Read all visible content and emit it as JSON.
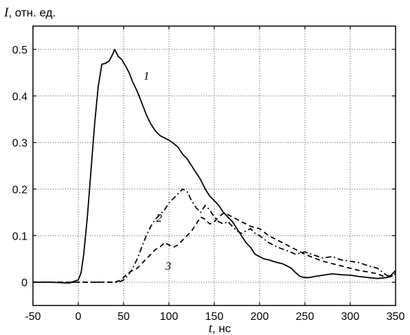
{
  "chart_data": {
    "type": "line",
    "title": "",
    "ylabel_var": "I",
    "ylabel_unit": ", отн. ед.",
    "xlabel_var": "t",
    "xlabel_unit": ", нс",
    "xlim": [
      -50,
      350
    ],
    "ylim": [
      -0.05,
      0.55
    ],
    "xticks": [
      -50,
      0,
      50,
      100,
      150,
      200,
      250,
      300,
      350
    ],
    "xtick_labels": [
      "-50",
      "0",
      "50",
      "100",
      "150",
      "200",
      "250",
      "300",
      "350"
    ],
    "yticks": [
      0,
      0.1,
      0.2,
      0.3,
      0.4,
      0.5
    ],
    "ytick_labels": [
      "0",
      "0.1",
      "0.2",
      "0.3",
      "0.4",
      "0.5"
    ],
    "grid": true,
    "series": [
      {
        "label": "1",
        "style": "solid",
        "label_at": [
          72,
          0.435
        ],
        "x": [
          -50,
          -30,
          -10,
          0,
          3,
          6,
          10,
          14,
          18,
          22,
          26,
          30,
          34,
          38,
          40,
          44,
          48,
          52,
          56,
          60,
          65,
          70,
          75,
          80,
          85,
          90,
          95,
          100,
          105,
          110,
          115,
          120,
          125,
          130,
          135,
          140,
          145,
          150,
          155,
          160,
          165,
          170,
          175,
          180,
          185,
          190,
          195,
          200,
          205,
          210,
          215,
          220,
          225,
          230,
          235,
          240,
          245,
          250,
          255,
          260,
          270,
          280,
          290,
          300,
          310,
          320,
          330,
          340,
          345,
          350
        ],
        "y": [
          0,
          0,
          -0.002,
          0.005,
          0.02,
          0.06,
          0.14,
          0.24,
          0.34,
          0.42,
          0.468,
          0.47,
          0.475,
          0.49,
          0.5,
          0.485,
          0.478,
          0.465,
          0.45,
          0.43,
          0.41,
          0.385,
          0.36,
          0.34,
          0.325,
          0.315,
          0.31,
          0.305,
          0.298,
          0.29,
          0.275,
          0.265,
          0.25,
          0.235,
          0.22,
          0.2,
          0.185,
          0.175,
          0.165,
          0.15,
          0.14,
          0.13,
          0.115,
          0.1,
          0.085,
          0.075,
          0.06,
          0.055,
          0.05,
          0.048,
          0.045,
          0.042,
          0.04,
          0.035,
          0.03,
          0.02,
          0.012,
          0.01,
          0.01,
          0.012,
          0.015,
          0.018,
          0.016,
          0.015,
          0.012,
          0.01,
          0.008,
          0.01,
          0.015,
          0.025
        ]
      },
      {
        "label": "2",
        "style": "dashdot",
        "label_at": [
          86,
          0.13
        ],
        "x": [
          -50,
          0,
          30,
          45,
          50,
          55,
          60,
          65,
          70,
          75,
          80,
          85,
          90,
          95,
          100,
          105,
          110,
          115,
          120,
          125,
          130,
          135,
          140,
          145,
          150,
          155,
          160,
          165,
          170,
          175,
          180,
          185,
          190,
          195,
          200,
          210,
          220,
          230,
          240,
          250,
          260,
          270,
          280,
          290,
          300,
          310,
          320,
          330,
          340,
          345,
          350
        ],
        "y": [
          0,
          0,
          0,
          0,
          0.005,
          0.015,
          0.03,
          0.05,
          0.075,
          0.1,
          0.12,
          0.135,
          0.145,
          0.155,
          0.17,
          0.18,
          0.19,
          0.2,
          0.195,
          0.175,
          0.16,
          0.15,
          0.165,
          0.155,
          0.14,
          0.13,
          0.125,
          0.13,
          0.12,
          0.11,
          0.105,
          0.11,
          0.115,
          0.105,
          0.1,
          0.085,
          0.075,
          0.068,
          0.06,
          0.065,
          0.058,
          0.052,
          0.055,
          0.048,
          0.045,
          0.042,
          0.035,
          0.03,
          0.015,
          0.012,
          0.02
        ]
      },
      {
        "label": "3",
        "style": "dashed",
        "label_at": [
          96,
          0.027
        ],
        "x": [
          -50,
          0,
          40,
          45,
          50,
          55,
          60,
          65,
          70,
          75,
          80,
          85,
          90,
          95,
          100,
          105,
          110,
          115,
          120,
          125,
          130,
          135,
          140,
          145,
          150,
          155,
          160,
          165,
          170,
          175,
          180,
          190,
          200,
          210,
          220,
          230,
          240,
          250,
          260,
          270,
          280,
          290,
          300,
          310,
          320,
          330,
          340,
          345,
          350
        ],
        "y": [
          0,
          0,
          0,
          0.003,
          0.01,
          0.02,
          0.025,
          0.03,
          0.04,
          0.05,
          0.06,
          0.07,
          0.075,
          0.085,
          0.08,
          0.075,
          0.08,
          0.09,
          0.1,
          0.11,
          0.125,
          0.14,
          0.135,
          0.125,
          0.13,
          0.14,
          0.148,
          0.145,
          0.14,
          0.135,
          0.13,
          0.12,
          0.115,
          0.1,
          0.09,
          0.08,
          0.07,
          0.06,
          0.052,
          0.045,
          0.04,
          0.035,
          0.03,
          0.025,
          0.022,
          0.018,
          0.01,
          0.012,
          0.018
        ]
      }
    ]
  }
}
